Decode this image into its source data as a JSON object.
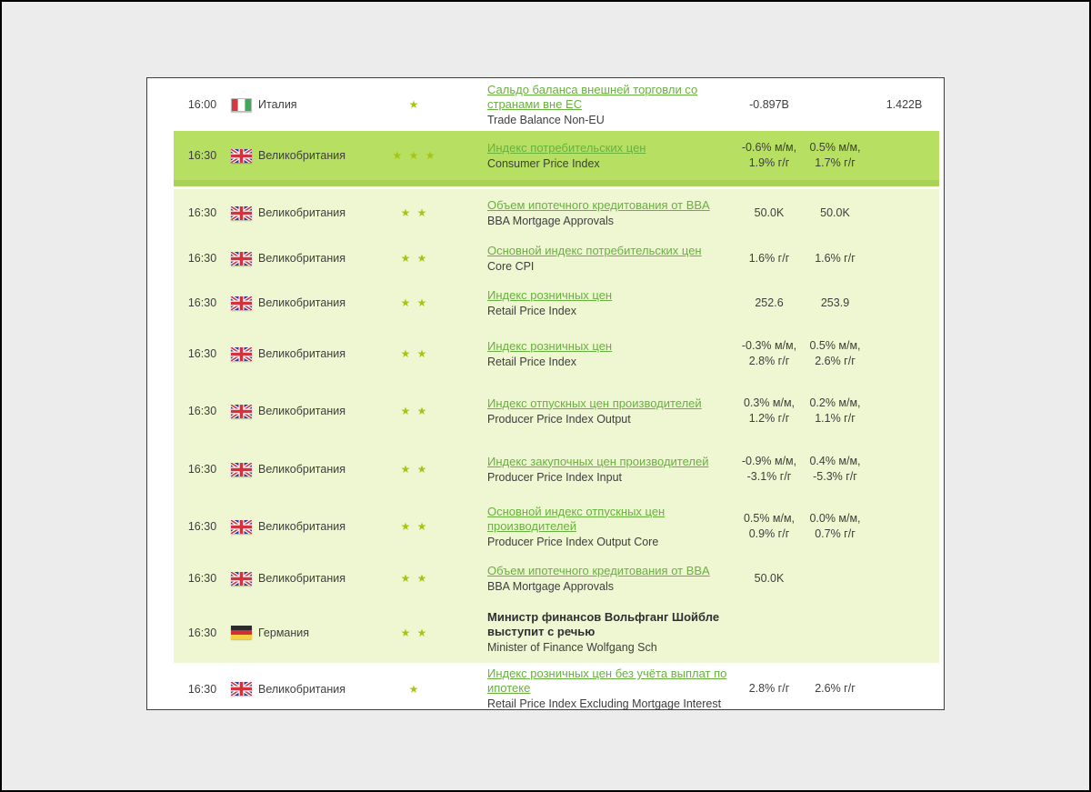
{
  "colors": {
    "highlight_row": "#b7df62",
    "highlight_row_dark": "#a9d257",
    "pale_row": "#eef7d2",
    "link_green": "#68b13e",
    "star": "#a6c513",
    "text_dark": "#3e3e3e"
  },
  "calendar": {
    "rows": [
      {
        "time": "16:00",
        "country": "Италия",
        "flag": "italy",
        "stars": 1,
        "event_ru": "Сальдо баланса внешней торговли со странами вне ЕС",
        "event_en": "Trade Balance Non-EU",
        "fact": "-0.897B",
        "forecast": "",
        "previous": "1.422B",
        "variant": "white",
        "link": true
      },
      {
        "time": "16:30",
        "country": "Великобритания",
        "flag": "uk",
        "stars": 3,
        "event_ru": "Индекс потребительских цен",
        "event_en": "Consumer Price Index",
        "fact": "-0.6% м/м, 1.9% г/г",
        "forecast": "0.5% м/м, 1.7% г/г",
        "previous": "",
        "variant": "highlight",
        "link": true
      },
      {
        "time": "16:30",
        "country": "Великобритания",
        "flag": "uk",
        "stars": 2,
        "event_ru": "Объем ипотечного кредитования от BBA",
        "event_en": "BBA Mortgage Approvals",
        "fact": "50.0K",
        "forecast": "50.0K",
        "previous": "",
        "variant": "pale",
        "link": true
      },
      {
        "time": "16:30",
        "country": "Великобритания",
        "flag": "uk",
        "stars": 2,
        "event_ru": "Основной индекс потребительских цен",
        "event_en": "Core CPI",
        "fact": "1.6% г/г",
        "forecast": "1.6% г/г",
        "previous": "",
        "variant": "pale",
        "link": true
      },
      {
        "time": "16:30",
        "country": "Великобритания",
        "flag": "uk",
        "stars": 2,
        "event_ru": "Индекс розничных цен",
        "event_en": "Retail Price Index",
        "fact": "252.6",
        "forecast": "253.9",
        "previous": "",
        "variant": "pale",
        "link": true
      },
      {
        "time": "16:30",
        "country": "Великобритания",
        "flag": "uk",
        "stars": 2,
        "event_ru": "Индекс розничных цен",
        "event_en": "Retail Price Index",
        "fact": "-0.3% м/м, 2.8% г/г",
        "forecast": "0.5% м/м, 2.6% г/г",
        "previous": "",
        "variant": "pale",
        "link": true
      },
      {
        "time": "16:30",
        "country": "Великобритания",
        "flag": "uk",
        "stars": 2,
        "event_ru": "Индекс отпускных цен производителей",
        "event_en": "Producer Price Index Output",
        "fact": "0.3% м/м, 1.2% г/г",
        "forecast": "0.2% м/м, 1.1% г/г",
        "previous": "",
        "variant": "pale",
        "link": true
      },
      {
        "time": "16:30",
        "country": "Великобритания",
        "flag": "uk",
        "stars": 2,
        "event_ru": "Индекс закупочных цен производителей",
        "event_en": "Producer Price Index Input",
        "fact": "-0.9% м/м, -3.1% г/г",
        "forecast": "0.4% м/м, -5.3% г/г",
        "previous": "",
        "variant": "pale",
        "link": true
      },
      {
        "time": "16:30",
        "country": "Великобритания",
        "flag": "uk",
        "stars": 2,
        "event_ru": "Основной индекс отпускных цен производителей",
        "event_en": "Producer Price Index Output Core",
        "fact": "0.5% м/м, 0.9% г/г",
        "forecast": "0.0% м/м, 0.7% г/г",
        "previous": "",
        "variant": "pale",
        "link": true
      },
      {
        "time": "16:30",
        "country": "Великобритания",
        "flag": "uk",
        "stars": 2,
        "event_ru": "Объем ипотечного кредитования от BBA",
        "event_en": "BBA Mortgage Approvals",
        "fact": "50.0K",
        "forecast": "",
        "previous": "",
        "variant": "pale",
        "link": true
      },
      {
        "time": "16:30",
        "country": "Германия",
        "flag": "germany",
        "stars": 2,
        "event_ru": "Министр финансов Вольфганг Шойбле выступит с речью",
        "event_en": "Minister of Finance Wolfgang Sch",
        "fact": "",
        "forecast": "",
        "previous": "",
        "variant": "pale",
        "link": false
      },
      {
        "time": "16:30",
        "country": "Великобритания",
        "flag": "uk",
        "stars": 1,
        "event_ru": "Индекс розничных цен без учёта выплат по ипотеке",
        "event_en": "Retail Price Index Excluding Mortgage Interest",
        "fact": "2.8% г/г",
        "forecast": "2.6% г/г",
        "previous": "",
        "variant": "white",
        "link": true
      }
    ]
  }
}
